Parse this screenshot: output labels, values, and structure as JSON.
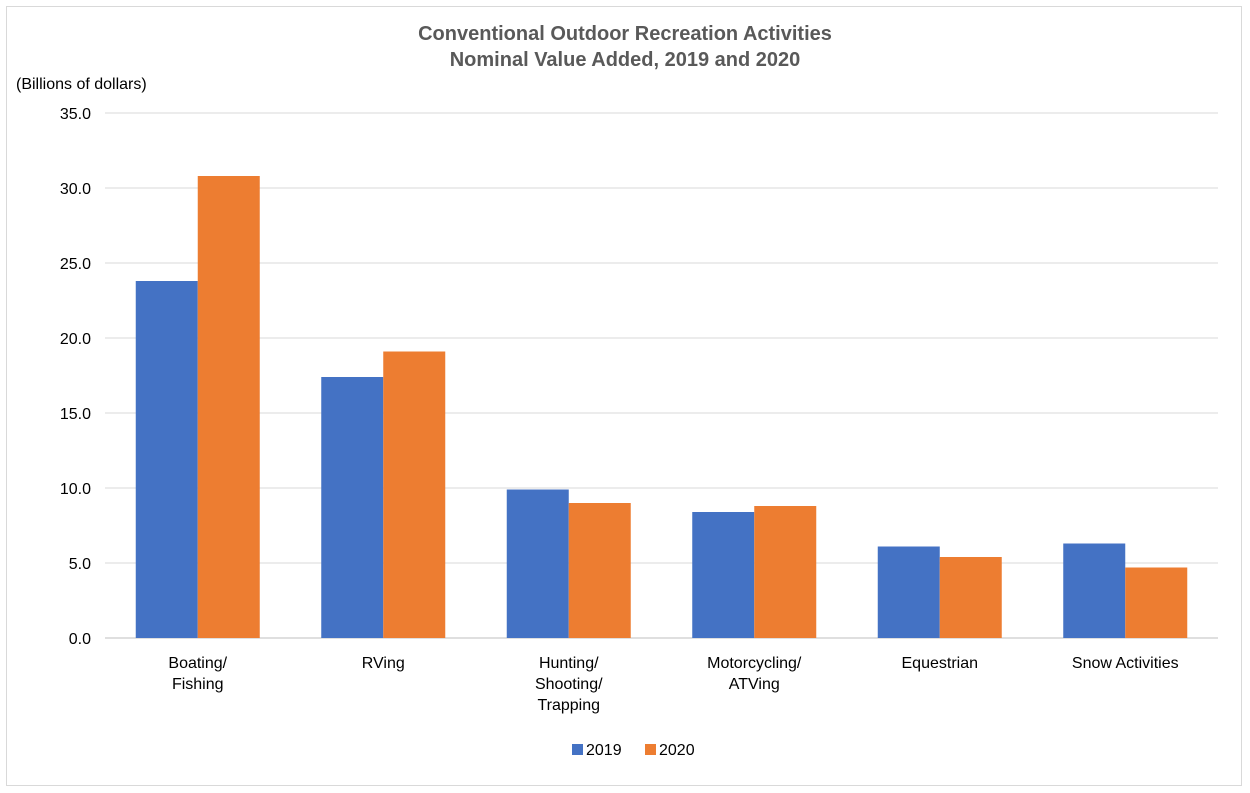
{
  "chart_data": {
    "type": "bar",
    "title": [
      "Conventional Outdoor Recreation Activities",
      "Nominal Value Added, 2019 and 2020"
    ],
    "ylabel": "(Billions of dollars)",
    "xlabel": "",
    "ylim": [
      0,
      35
    ],
    "ytick_labels": [
      "0.0",
      "5.0",
      "10.0",
      "15.0",
      "20.0",
      "25.0",
      "30.0",
      "35.0"
    ],
    "grid": true,
    "legend_position": "bottom",
    "categories": [
      [
        "Boating/",
        "Fishing"
      ],
      [
        "RVing"
      ],
      [
        "Hunting/",
        "Shooting/",
        "Trapping"
      ],
      [
        "Motorcycling/",
        "ATVing"
      ],
      [
        "Equestrian"
      ],
      [
        "Snow Activities"
      ]
    ],
    "series": [
      {
        "name": "2019",
        "color": "#4472c4",
        "values": [
          23.8,
          17.4,
          9.9,
          8.4,
          6.1,
          6.3
        ]
      },
      {
        "name": "2020",
        "color": "#ed7d31",
        "values": [
          30.8,
          19.1,
          9.0,
          8.8,
          5.4,
          4.7
        ]
      }
    ]
  }
}
